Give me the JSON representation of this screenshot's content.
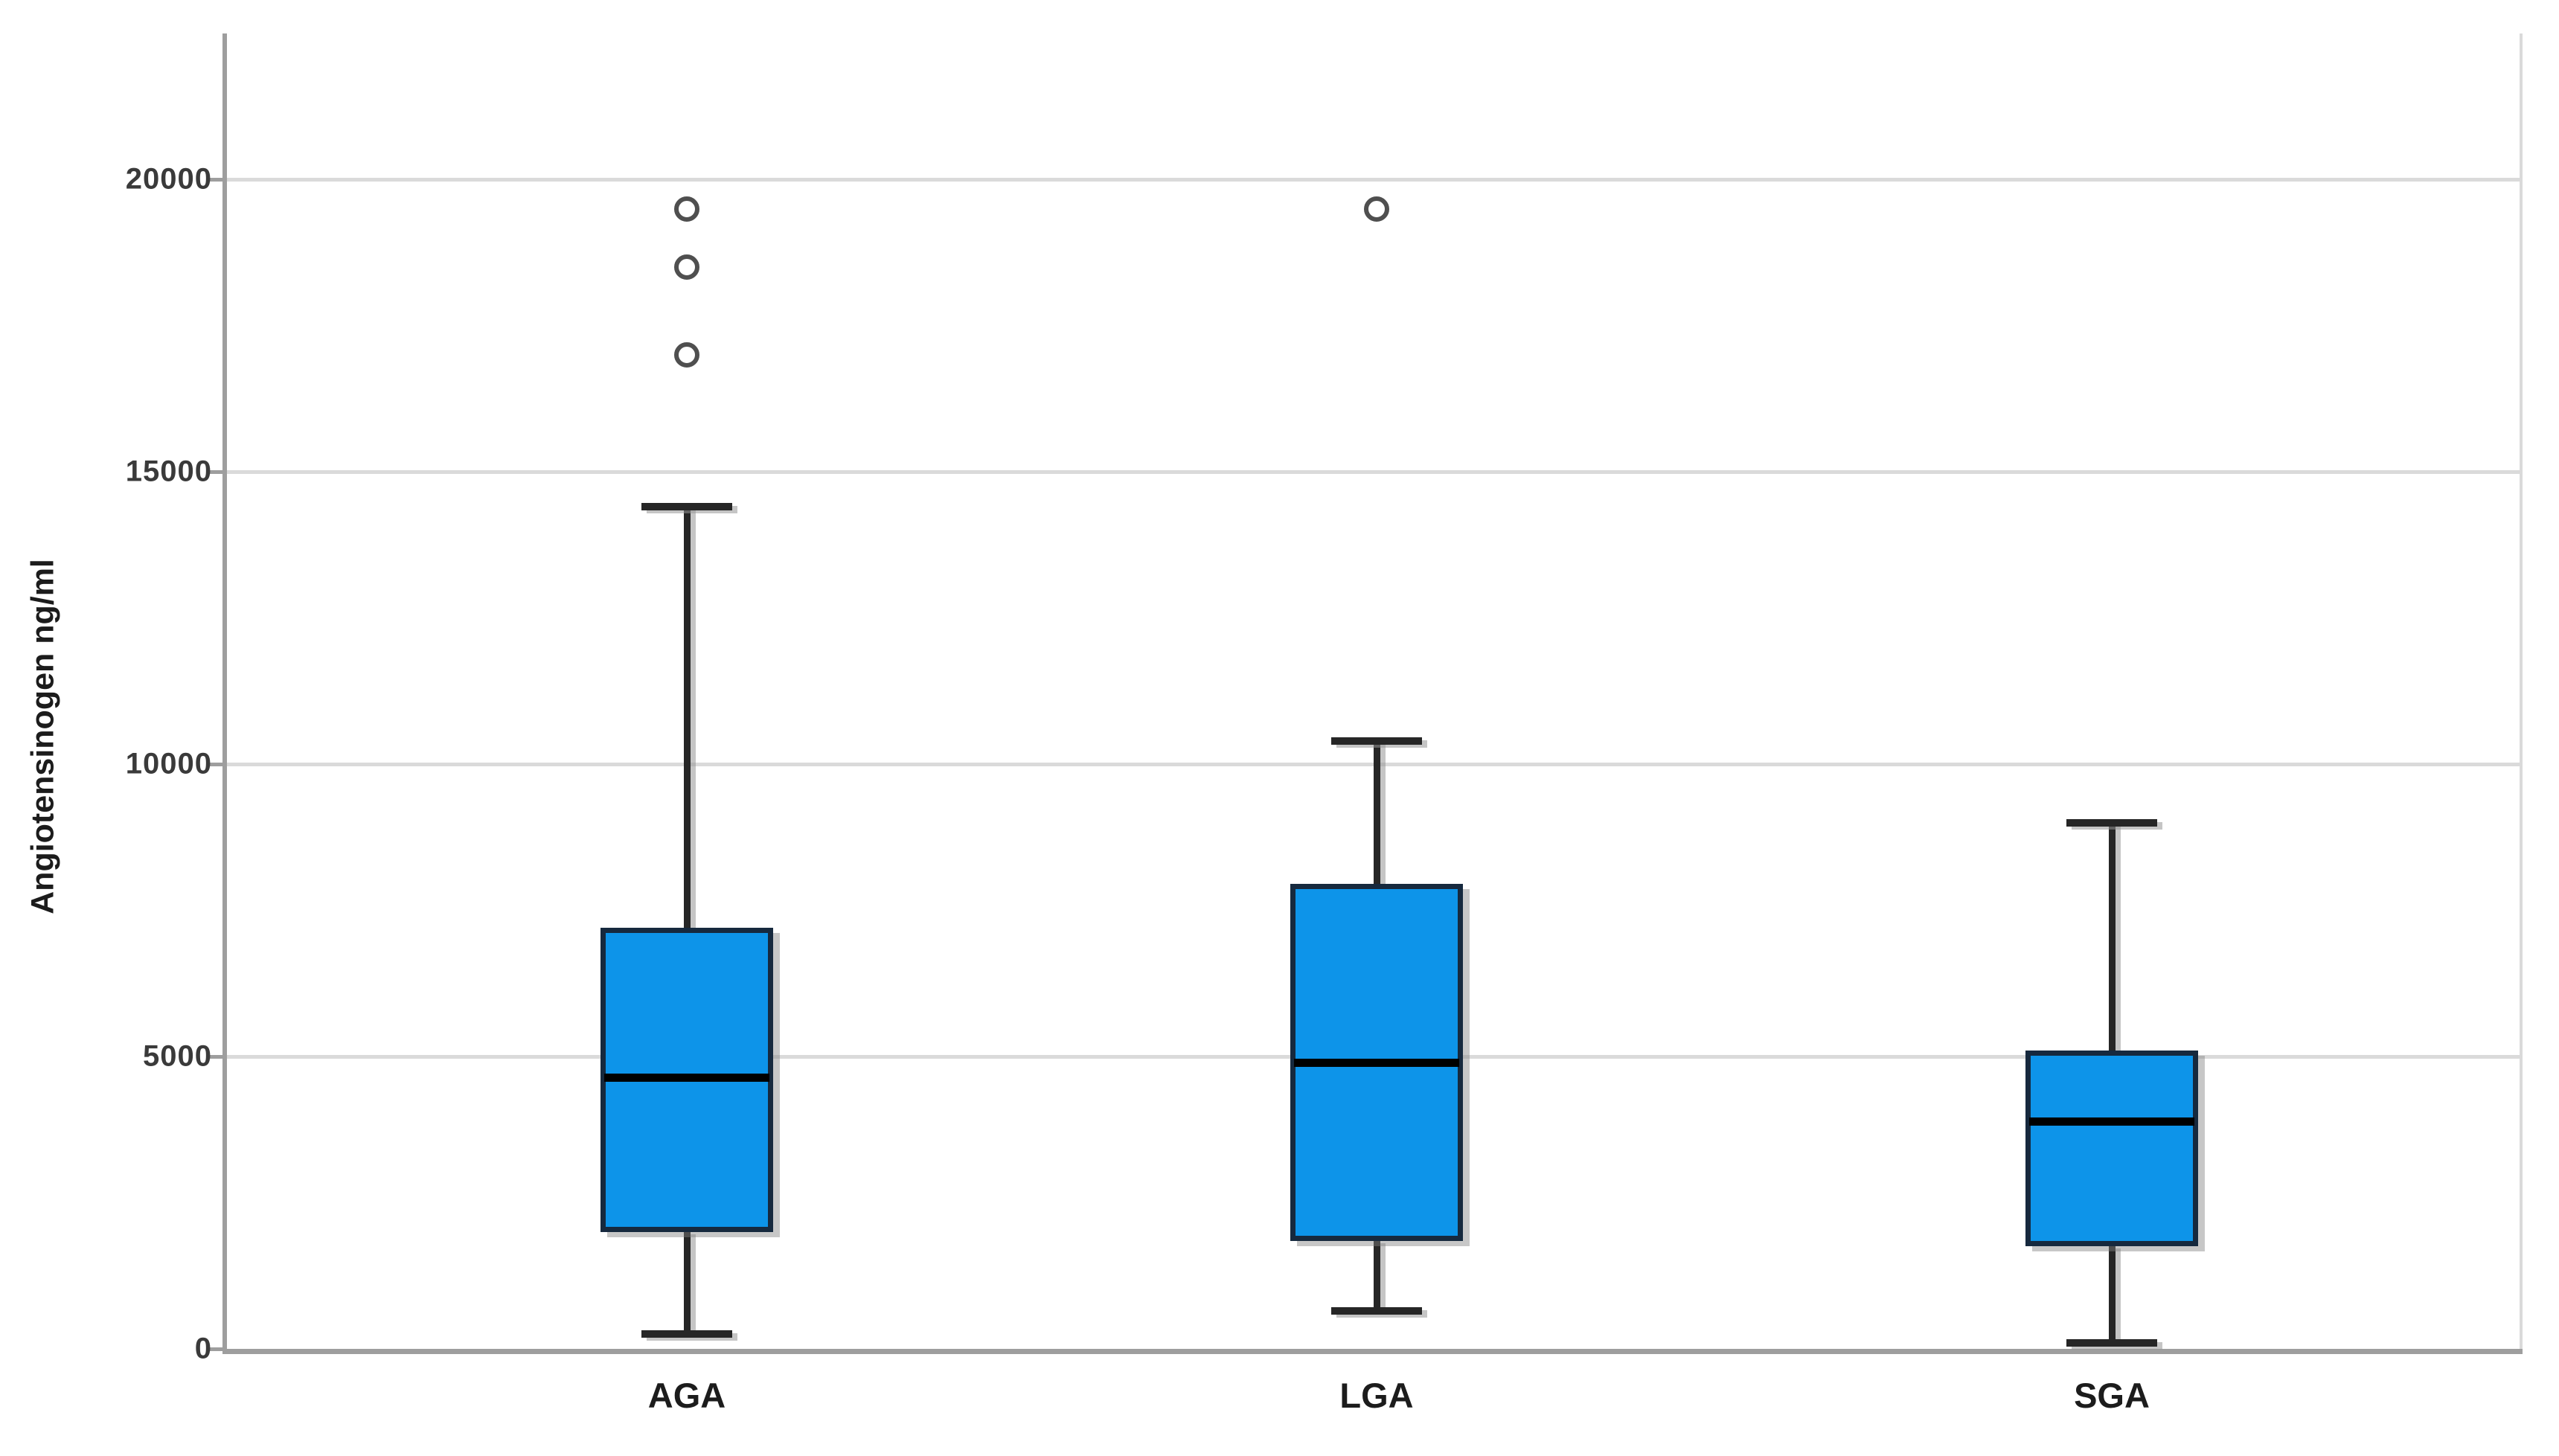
{
  "chart_data": {
    "type": "box",
    "title": "",
    "xlabel": "",
    "ylabel": "Angiotensinogen ng/ml",
    "categories": [
      "AGA",
      "LGA",
      "SGA"
    ],
    "y_ticks": [
      0,
      5000,
      10000,
      15000,
      20000
    ],
    "y_tick_labels": [
      "0",
      "5000",
      "10000",
      "15000",
      "20000"
    ],
    "ylim": [
      0,
      22500
    ],
    "grid": "horizontal-light-gray",
    "legend": "none",
    "series": [
      {
        "category": "AGA",
        "min": 250,
        "q1": 2000,
        "median": 4650,
        "q3": 7200,
        "max": 14400,
        "outliers": [
          17000,
          18500,
          19500
        ]
      },
      {
        "category": "LGA",
        "min": 650,
        "q1": 1850,
        "median": 4900,
        "q3": 7950,
        "max": 10400,
        "outliers": [
          19500
        ]
      },
      {
        "category": "SGA",
        "min": 100,
        "q1": 1750,
        "median": 3900,
        "q3": 5100,
        "max": 9000,
        "outliers": []
      }
    ],
    "colors": {
      "box_fill": "#0d94e9",
      "box_border": "#16293e",
      "median_line": "#000000",
      "whisker": "#262626",
      "outlier_ring": "#4f4f4f",
      "gridline": "#dadada",
      "axis_line": "#9e9e9e",
      "tick_text": "#3a3a3a",
      "category_text": "#1c1c1c",
      "background": "#ffffff"
    }
  }
}
